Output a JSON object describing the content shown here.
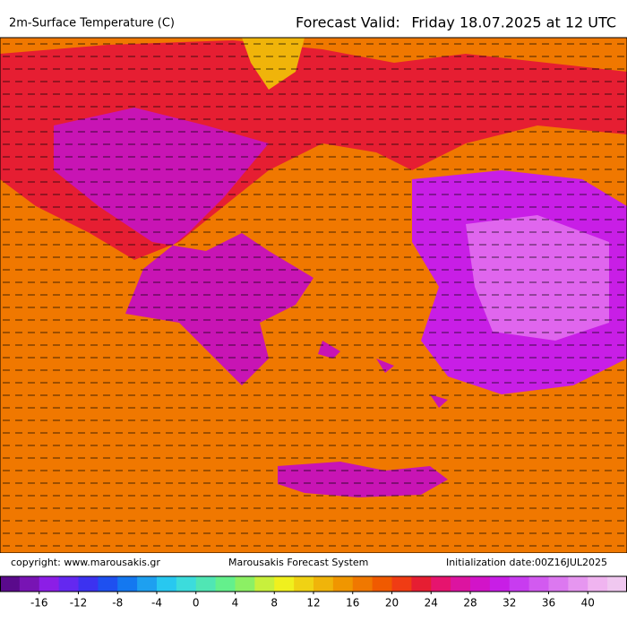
{
  "header": {
    "title": "2m-Surface Temperature (C)",
    "valid_label": "Forecast Valid:",
    "valid_date": "Friday 18.07.2025 at 12 UTC"
  },
  "footer": {
    "copyright": "copyright: www.marousakis.gr",
    "system": "Marousakis Forecast System",
    "init": "Initialization date:00Z16JUL2025"
  },
  "colorbar": {
    "range": [
      -20,
      44
    ],
    "colors": [
      "#5a0a8c",
      "#7814b4",
      "#8c1ee6",
      "#6428f0",
      "#3c32f0",
      "#1e50f0",
      "#1478f0",
      "#1ea0f0",
      "#28c8f0",
      "#3cdcdc",
      "#50e6b4",
      "#64f08c",
      "#8cf064",
      "#c8f03c",
      "#f0f01e",
      "#f0d214",
      "#f0b40a",
      "#f09600",
      "#f07800",
      "#f05a00",
      "#f03c14",
      "#e61e32",
      "#e6146e",
      "#dc14a0",
      "#d214c8",
      "#c81ee6",
      "#c83cf0",
      "#d25af0",
      "#dc78f0",
      "#e696f0",
      "#f0b4f0",
      "#f0c8f0"
    ],
    "ticks": [
      -16,
      -12,
      -8,
      -4,
      0,
      4,
      8,
      12,
      16,
      20,
      24,
      28,
      32,
      36,
      40
    ]
  }
}
